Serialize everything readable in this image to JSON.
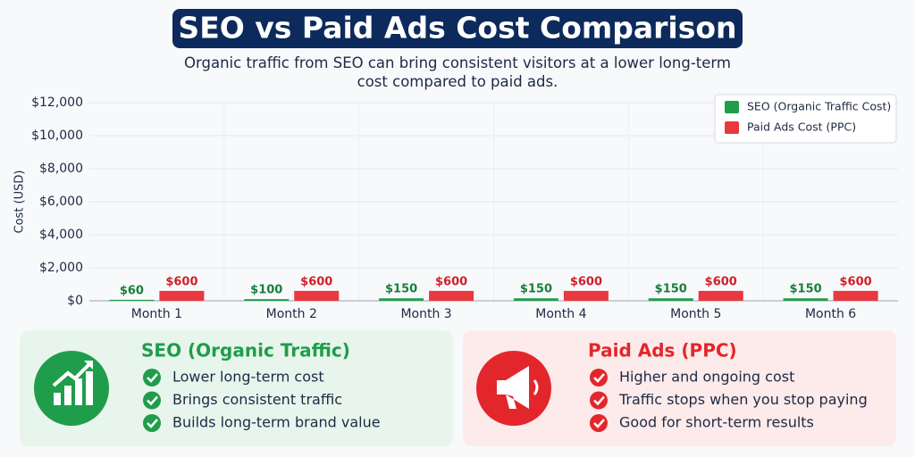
{
  "chart_data": {
    "type": "bar",
    "title": "SEO vs Paid Ads Cost Comparison",
    "subtitle": "Organic traffic from SEO can bring consistent visitors at a lower long-term cost compared to paid ads.",
    "y_label": "Cost (USD)",
    "categories": [
      "Month 1",
      "Month 2",
      "Month 3",
      "Month 4",
      "Month 5",
      "Month 6"
    ],
    "series": [
      {
        "name": "SEO (Organic Traffic Cost)",
        "color": "#1f9d4b",
        "values": [
          60,
          100,
          150,
          150,
          150,
          150
        ],
        "value_labels": [
          "$60",
          "$100",
          "$150",
          "$150",
          "$150",
          "$150"
        ]
      },
      {
        "name": "Paid Ads Cost (PPC)",
        "color": "#e8393e",
        "values": [
          600,
          600,
          600,
          600,
          600,
          600
        ],
        "value_labels": [
          "$600",
          "$600",
          "$600",
          "$600",
          "$600",
          "$600"
        ]
      }
    ],
    "ylim": [
      0,
      12000
    ],
    "yticks": [
      {
        "value": 0,
        "label": "$0"
      },
      {
        "value": 2000,
        "label": "$2,000"
      },
      {
        "value": 4000,
        "label": "$4,000"
      },
      {
        "value": 6000,
        "label": "$6,000"
      },
      {
        "value": 8000,
        "label": "$8,000"
      },
      {
        "value": 10000,
        "label": "$10,000"
      },
      {
        "value": 12000,
        "label": "$12,000"
      }
    ],
    "grid": true,
    "legend": "upper right"
  },
  "cards": [
    {
      "title": "SEO (Organic Traffic)",
      "color": "#1f9d4b",
      "items": [
        "Lower long-term cost",
        "Brings consistent traffic",
        "Builds long-term brand value"
      ]
    },
    {
      "title": "Paid Ads (PPC)",
      "color": "#e3262c",
      "items": [
        "Higher and ongoing cost",
        "Traffic stops when you stop paying",
        "Good for short-term results"
      ]
    }
  ]
}
